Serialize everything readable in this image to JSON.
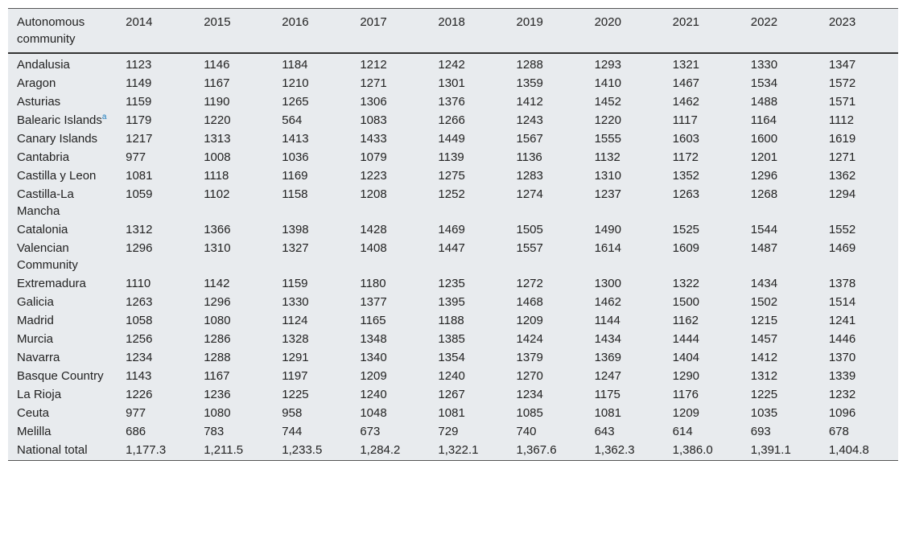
{
  "table": {
    "header": {
      "name": "Autonomous community",
      "years": [
        "2014",
        "2015",
        "2016",
        "2017",
        "2018",
        "2019",
        "2020",
        "2021",
        "2022",
        "2023"
      ]
    },
    "rows": [
      {
        "name": "Andalusia",
        "note": "",
        "values": [
          "1123",
          "1146",
          "1184",
          "1212",
          "1242",
          "1288",
          "1293",
          "1321",
          "1330",
          "1347"
        ]
      },
      {
        "name": "Aragon",
        "note": "",
        "values": [
          "1149",
          "1167",
          "1210",
          "1271",
          "1301",
          "1359",
          "1410",
          "1467",
          "1534",
          "1572"
        ]
      },
      {
        "name": "Asturias",
        "note": "",
        "values": [
          "1159",
          "1190",
          "1265",
          "1306",
          "1376",
          "1412",
          "1452",
          "1462",
          "1488",
          "1571"
        ]
      },
      {
        "name": "Balearic Islands",
        "note": "a",
        "values": [
          "1179",
          "1220",
          "564",
          "1083",
          "1266",
          "1243",
          "1220",
          "1117",
          "1164",
          "1112"
        ]
      },
      {
        "name": "Canary Islands",
        "note": "",
        "values": [
          "1217",
          "1313",
          "1413",
          "1433",
          "1449",
          "1567",
          "1555",
          "1603",
          "1600",
          "1619"
        ]
      },
      {
        "name": "Cantabria",
        "note": "",
        "values": [
          "977",
          "1008",
          "1036",
          "1079",
          "1139",
          "1136",
          "1132",
          "1172",
          "1201",
          "1271"
        ]
      },
      {
        "name": "Castilla y Leon",
        "note": "",
        "values": [
          "1081",
          "1118",
          "1169",
          "1223",
          "1275",
          "1283",
          "1310",
          "1352",
          "1296",
          "1362"
        ]
      },
      {
        "name": "Castilla-La Mancha",
        "note": "",
        "values": [
          "1059",
          "1102",
          "1158",
          "1208",
          "1252",
          "1274",
          "1237",
          "1263",
          "1268",
          "1294"
        ]
      },
      {
        "name": "Catalonia",
        "note": "",
        "values": [
          "1312",
          "1366",
          "1398",
          "1428",
          "1469",
          "1505",
          "1490",
          "1525",
          "1544",
          "1552"
        ]
      },
      {
        "name": "Valencian Community",
        "note": "",
        "values": [
          "1296",
          "1310",
          "1327",
          "1408",
          "1447",
          "1557",
          "1614",
          "1609",
          "1487",
          "1469"
        ]
      },
      {
        "name": "Extremadura",
        "note": "",
        "values": [
          "1110",
          "1142",
          "1159",
          "1180",
          "1235",
          "1272",
          "1300",
          "1322",
          "1434",
          "1378"
        ]
      },
      {
        "name": "Galicia",
        "note": "",
        "values": [
          "1263",
          "1296",
          "1330",
          "1377",
          "1395",
          "1468",
          "1462",
          "1500",
          "1502",
          "1514"
        ]
      },
      {
        "name": "Madrid",
        "note": "",
        "values": [
          "1058",
          "1080",
          "1124",
          "1165",
          "1188",
          "1209",
          "1144",
          "1162",
          "1215",
          "1241"
        ]
      },
      {
        "name": "Murcia",
        "note": "",
        "values": [
          "1256",
          "1286",
          "1328",
          "1348",
          "1385",
          "1424",
          "1434",
          "1444",
          "1457",
          "1446"
        ]
      },
      {
        "name": "Navarra",
        "note": "",
        "values": [
          "1234",
          "1288",
          "1291",
          "1340",
          "1354",
          "1379",
          "1369",
          "1404",
          "1412",
          "1370"
        ]
      },
      {
        "name": "Basque Country",
        "note": "",
        "values": [
          "1143",
          "1167",
          "1197",
          "1209",
          "1240",
          "1270",
          "1247",
          "1290",
          "1312",
          "1339"
        ]
      },
      {
        "name": "La Rioja",
        "note": "",
        "values": [
          "1226",
          "1236",
          "1225",
          "1240",
          "1267",
          "1234",
          "1175",
          "1176",
          "1225",
          "1232"
        ]
      },
      {
        "name": "Ceuta",
        "note": "",
        "values": [
          "977",
          "1080",
          "958",
          "1048",
          "1081",
          "1085",
          "1081",
          "1209",
          "1035",
          "1096"
        ]
      },
      {
        "name": "Melilla",
        "note": "",
        "values": [
          "686",
          "783",
          "744",
          "673",
          "729",
          "740",
          "643",
          "614",
          "693",
          "678"
        ]
      },
      {
        "name": "National total",
        "note": "",
        "values": [
          "1,177.3",
          "1,211.5",
          "1,233.5",
          "1,284.2",
          "1,322.1",
          "1,367.6",
          "1,362.3",
          "1,386.0",
          "1,391.1",
          "1,404.8"
        ]
      }
    ]
  }
}
